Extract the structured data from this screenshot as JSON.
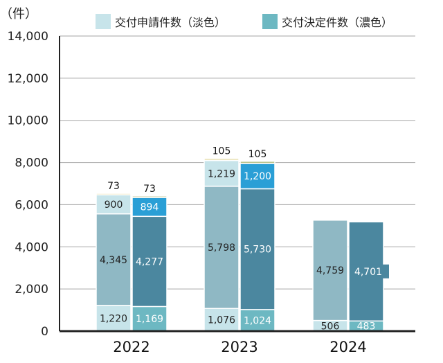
{
  "chart_data": {
    "type": "bar",
    "stacked": true,
    "unit_label": "（件）",
    "legend": [
      {
        "label": "交付申請件数（淡色）",
        "color": "#c7e4ea"
      },
      {
        "label": "交付決定件数（濃色）",
        "color": "#6db8c2"
      }
    ],
    "categories": [
      "2022",
      "2023",
      "2024"
    ],
    "y_axis": {
      "min": 0,
      "max": 14000,
      "step": 2000,
      "tick_labels": [
        "0",
        "2,000",
        "4,000",
        "6,000",
        "8,000",
        "10,000",
        "12,000",
        "14,000"
      ]
    },
    "bars": [
      {
        "category": "2022",
        "kind": "application",
        "segments": [
          {
            "value": 1220,
            "label": "1,220",
            "fill": "#c7e4ea",
            "text_color": "#222222"
          },
          {
            "value": 4345,
            "label": "4,345",
            "fill": "#8fb8c4",
            "text_color": "#222222"
          },
          {
            "value": 900,
            "label": "900",
            "fill": "#c7e4ea",
            "text_color": "#222222"
          },
          {
            "value": 73,
            "label": "73",
            "fill": "#ece6bf",
            "text_color": "#111111",
            "outside": true
          }
        ]
      },
      {
        "category": "2022",
        "kind": "decision",
        "segments": [
          {
            "value": 1169,
            "label": "1,169",
            "fill": "#6db8c2",
            "text_color": "#ffffff"
          },
          {
            "value": 4277,
            "label": "4,277",
            "fill": "#4b879f",
            "text_color": "#ffffff"
          },
          {
            "value": 894,
            "label": "894",
            "fill": "#2a9fd6",
            "text_color": "#ffffff"
          },
          {
            "value": 73,
            "label": "73",
            "fill": "#b9c28a",
            "text_color": "#111111",
            "outside": true
          }
        ]
      },
      {
        "category": "2023",
        "kind": "application",
        "segments": [
          {
            "value": 1076,
            "label": "1,076",
            "fill": "#c7e4ea",
            "text_color": "#222222"
          },
          {
            "value": 5798,
            "label": "5,798",
            "fill": "#8fb8c4",
            "text_color": "#222222"
          },
          {
            "value": 1219,
            "label": "1,219",
            "fill": "#c7e4ea",
            "text_color": "#222222"
          },
          {
            "value": 105,
            "label": "105",
            "fill": "#ece6bf",
            "text_color": "#111111",
            "outside": true
          }
        ]
      },
      {
        "category": "2023",
        "kind": "decision",
        "segments": [
          {
            "value": 1024,
            "label": "1,024",
            "fill": "#6db8c2",
            "text_color": "#ffffff"
          },
          {
            "value": 5730,
            "label": "5,730",
            "fill": "#4b879f",
            "text_color": "#ffffff"
          },
          {
            "value": 1200,
            "label": "1,200",
            "fill": "#2a9fd6",
            "text_color": "#ffffff"
          },
          {
            "value": 105,
            "label": "105",
            "fill": "#b9c28a",
            "text_color": "#111111",
            "outside": true
          }
        ]
      },
      {
        "category": "2024",
        "kind": "application",
        "segments": [
          {
            "value": 506,
            "label": "506",
            "fill": "#c7e4ea",
            "text_color": "#222222"
          },
          {
            "value": 4759,
            "label": "4,759",
            "fill": "#8fb8c4",
            "text_color": "#222222"
          }
        ]
      },
      {
        "category": "2024",
        "kind": "decision",
        "segments": [
          {
            "value": 483,
            "label": "483",
            "fill": "#6db8c2",
            "text_color": "#ffffff"
          },
          {
            "value": 4701,
            "label": "4,701",
            "fill": "#4b879f",
            "text_color": "#ffffff",
            "label_box": true
          }
        ]
      }
    ],
    "gridlines": true
  }
}
